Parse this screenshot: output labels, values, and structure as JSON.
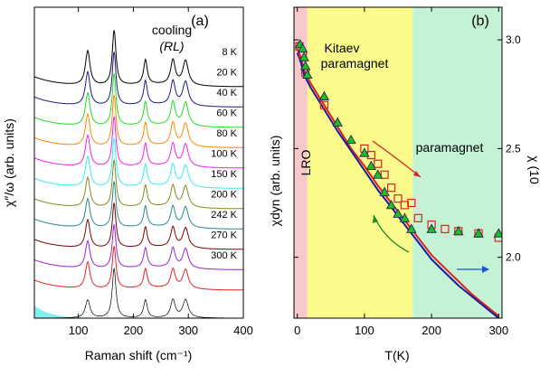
{
  "chart_data": [
    {
      "panel_label": "(a)",
      "type": "line",
      "annotation_line1": "cooling",
      "annotation_line2": "(RL)",
      "xlabel": "Raman shift (cm⁻¹)",
      "ylabel": "χ″/ω (arb. units)",
      "xlim": [
        20,
        400
      ],
      "xticks": [
        100,
        200,
        300,
        400
      ],
      "peaks": [
        {
          "x": 117,
          "w": 5
        },
        {
          "x": 165,
          "w": 4
        },
        {
          "x": 222,
          "w": 4
        },
        {
          "x": 272,
          "w": 5
        },
        {
          "x": 295,
          "w": 6
        }
      ],
      "series": [
        {
          "name": "8 K",
          "color": "#000000"
        },
        {
          "name": "20 K",
          "color": "#1a1a80"
        },
        {
          "name": "40 K",
          "color": "#22dd22"
        },
        {
          "name": "60 K",
          "color": "#ff8800"
        },
        {
          "name": "80 K",
          "color": "#ee22ee"
        },
        {
          "name": "100 K",
          "color": "#33eeee"
        },
        {
          "name": "150 K",
          "color": "#888822"
        },
        {
          "name": "200 K",
          "color": "#2a8a8a"
        },
        {
          "name": "242 K",
          "color": "#800000"
        },
        {
          "name": "270 K",
          "color": "#9922dd"
        },
        {
          "name": "300 K",
          "color": "#ee2222"
        }
      ]
    },
    {
      "panel_label": "(b)",
      "type": "scatter",
      "xlabel": "T(K)",
      "ylabel_left": "χdyn (arb. units)",
      "ylabel_right": "χ (10",
      "xlim": [
        -5,
        305
      ],
      "ylim": [
        1.72,
        3.15
      ],
      "xticks": [
        0,
        100,
        200,
        300
      ],
      "yticks": [
        2.0,
        2.5,
        3.0
      ],
      "regions": [
        {
          "label": "LRO",
          "from": -5,
          "to": 15,
          "color": "#f8c8cc"
        },
        {
          "label": "Kitaev paramagnet",
          "from": 15,
          "to": 172,
          "color": "#fbfb8c"
        },
        {
          "label": "paramagnet",
          "from": 172,
          "to": 305,
          "color": "#c4f2d4"
        }
      ],
      "region_label_kitaev_1": "Kitaev",
      "region_label_kitaev_2": "paramagnet",
      "region_label_para": "paramagnet",
      "region_label_lro": "LRO",
      "triangles": {
        "name": "chi_dyn",
        "color": "#22bb22",
        "x": [
          4,
          8,
          10,
          12,
          15,
          40,
          60,
          80,
          100,
          110,
          120,
          130,
          140,
          150,
          160,
          170,
          200,
          240,
          270,
          300
        ],
        "y": [
          2.98,
          2.96,
          2.92,
          2.88,
          2.84,
          2.74,
          2.62,
          2.54,
          2.48,
          2.42,
          2.38,
          2.3,
          2.24,
          2.2,
          2.18,
          2.13,
          2.13,
          2.12,
          2.11,
          2.11
        ]
      },
      "squares": {
        "name": "chi_dyn_raman",
        "color": "#dd2222",
        "x": [
          3,
          8,
          12,
          40,
          100,
          110,
          120,
          130,
          140,
          150,
          160,
          170,
          180,
          200,
          220,
          240,
          270,
          300
        ],
        "y": [
          2.97,
          2.93,
          2.85,
          2.7,
          2.5,
          2.47,
          2.43,
          2.38,
          2.32,
          2.27,
          2.24,
          2.25,
          2.18,
          2.15,
          2.13,
          2.12,
          2.11,
          2.09
        ]
      },
      "lines": [
        {
          "name": "susceptibility_red",
          "color": "#dd2222",
          "x": [
            0,
            5,
            10,
            20,
            40,
            60,
            80,
            100,
            120,
            140,
            160,
            180,
            200,
            220,
            240,
            260,
            280,
            300
          ],
          "y": [
            2.96,
            2.92,
            2.86,
            2.8,
            2.7,
            2.6,
            2.5,
            2.42,
            2.33,
            2.25,
            2.17,
            2.09,
            2.01,
            1.95,
            1.89,
            1.83,
            1.78,
            1.73
          ]
        },
        {
          "name": "susceptibility_blue",
          "color": "#1a1aa0",
          "x": [
            0,
            5,
            10,
            20,
            40,
            60,
            80,
            100,
            120,
            140,
            160,
            180,
            200,
            220,
            240,
            260,
            280,
            300
          ],
          "y": [
            2.94,
            2.9,
            2.84,
            2.78,
            2.68,
            2.58,
            2.49,
            2.4,
            2.31,
            2.23,
            2.15,
            2.07,
            1.99,
            1.93,
            1.87,
            1.82,
            1.77,
            1.72
          ]
        }
      ]
    }
  ]
}
